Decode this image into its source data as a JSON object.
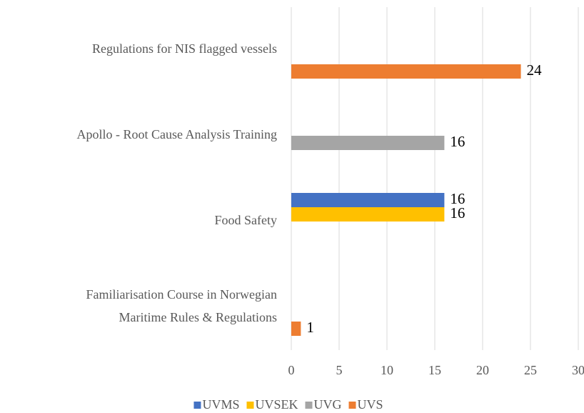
{
  "chart_data": {
    "type": "bar",
    "orientation": "horizontal",
    "categories": [
      "Regulations for NIS flagged vessels",
      "Apollo - Root Cause Analysis Training",
      "Food Safety",
      "Familiarisation Course in Norwegian Maritime Rules & Regulations"
    ],
    "series": [
      {
        "name": "UVMS",
        "color": "#4472c4",
        "values": [
          null,
          null,
          16,
          null
        ]
      },
      {
        "name": "UVSEK",
        "color": "#ffc000",
        "values": [
          null,
          null,
          16,
          null
        ]
      },
      {
        "name": "UVG",
        "color": "#a5a5a5",
        "values": [
          null,
          16,
          null,
          null
        ]
      },
      {
        "name": "UVS",
        "color": "#ed7d31",
        "values": [
          24,
          null,
          null,
          1
        ]
      }
    ],
    "xlim": [
      0,
      30
    ],
    "xticks": [
      0,
      5,
      10,
      15,
      20,
      25,
      30
    ],
    "grid": true,
    "legend": "bottom"
  }
}
